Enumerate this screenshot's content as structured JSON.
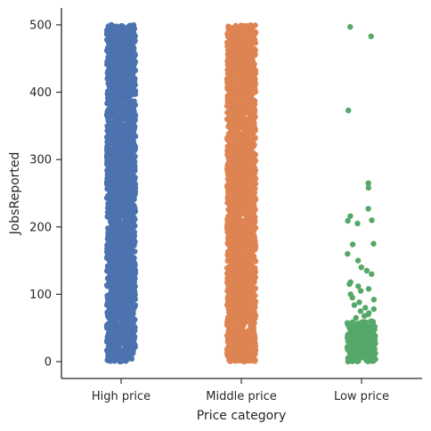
{
  "chart_data": {
    "type": "scatter",
    "subtype": "strip",
    "title": "",
    "xlabel": "Price category",
    "ylabel": "JobsReported",
    "categories": [
      "High price",
      "Middle price",
      "Low price"
    ],
    "ylim": [
      -25,
      525
    ],
    "yticks": [
      0,
      100,
      200,
      300,
      400,
      500
    ],
    "grid": false,
    "legend": "none",
    "series": [
      {
        "category": "High price",
        "color": "#4c72b0",
        "dense_range": [
          0,
          500
        ]
      },
      {
        "category": "Middle price",
        "color": "#dd8452",
        "dense_range": [
          0,
          500
        ]
      },
      {
        "category": "Low price",
        "color": "#55a868",
        "dense_range": [
          0,
          60
        ],
        "points": [
          497,
          483,
          373,
          265,
          258,
          227,
          216,
          210,
          209,
          205,
          175,
          174,
          160,
          150,
          140,
          135,
          130,
          118,
          115,
          112,
          108,
          105,
          100,
          95,
          92,
          88,
          84,
          80,
          78,
          75,
          72,
          70,
          68,
          65
        ]
      }
    ]
  }
}
